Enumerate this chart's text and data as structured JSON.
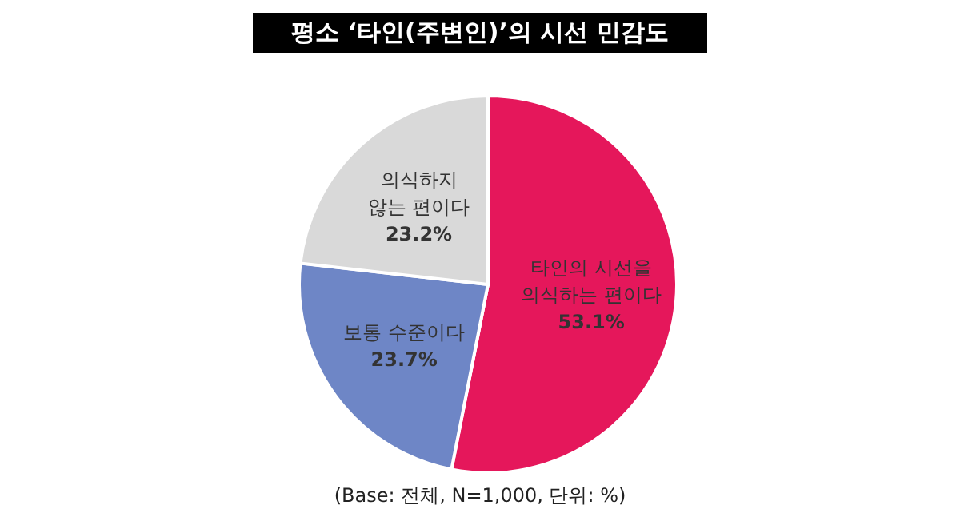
{
  "chart_data": {
    "type": "pie",
    "title": "평소 ‘타인(주변인)’의 시선 민감도",
    "categories": [
      "타인의 시선을\n의식하는 편이다",
      "보통 수준이다",
      "의식하지\n않는 편이다"
    ],
    "values": [
      53.1,
      23.7,
      23.2
    ],
    "value_labels": [
      "53.1%",
      "23.7%",
      "23.2%"
    ],
    "colors": [
      "#e5175b",
      "#6e86c6",
      "#d9d9d9"
    ],
    "annotations": [
      "(Base: 전체, N=1,000, 단위: %)"
    ]
  }
}
